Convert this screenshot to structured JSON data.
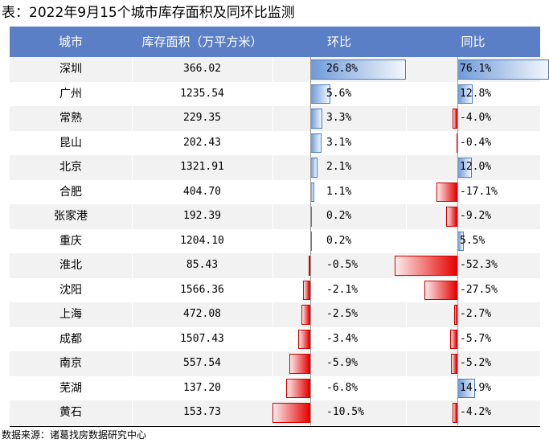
{
  "title": "表：2022年9月15个城市库存面积及同环比监测",
  "source": "数据来源：诸葛找房数据研究中心",
  "headers": {
    "city": "城市",
    "inventory": "库存面积（万平方米）",
    "mom": "环比",
    "yoy": "同比"
  },
  "colors": {
    "header_bg": "#5b7fc6",
    "positive_bar": "#6f9bd8",
    "negative_bar": "#e60000"
  },
  "chart_data": {
    "type": "table",
    "columns": [
      "城市",
      "库存面积（万平方米）",
      "环比",
      "同比"
    ],
    "rows": [
      {
        "city": "深圳",
        "inventory": "366.02",
        "mom": 26.8,
        "mom_label": "26.8%",
        "yoy": 76.1,
        "yoy_label": "76.1%"
      },
      {
        "city": "广州",
        "inventory": "1235.54",
        "mom": 5.6,
        "mom_label": "5.6%",
        "yoy": 12.8,
        "yoy_label": "12.8%"
      },
      {
        "city": "常熟",
        "inventory": "229.35",
        "mom": 3.3,
        "mom_label": "3.3%",
        "yoy": -4.0,
        "yoy_label": "-4.0%"
      },
      {
        "city": "昆山",
        "inventory": "202.43",
        "mom": 3.1,
        "mom_label": "3.1%",
        "yoy": -0.4,
        "yoy_label": "-0.4%"
      },
      {
        "city": "北京",
        "inventory": "1321.91",
        "mom": 2.1,
        "mom_label": "2.1%",
        "yoy": 12.0,
        "yoy_label": "12.0%"
      },
      {
        "city": "合肥",
        "inventory": "404.70",
        "mom": 1.1,
        "mom_label": "1.1%",
        "yoy": -17.1,
        "yoy_label": "-17.1%"
      },
      {
        "city": "张家港",
        "inventory": "192.39",
        "mom": 0.2,
        "mom_label": "0.2%",
        "yoy": -9.2,
        "yoy_label": "-9.2%"
      },
      {
        "city": "重庆",
        "inventory": "1204.10",
        "mom": 0.2,
        "mom_label": "0.2%",
        "yoy": 5.5,
        "yoy_label": "5.5%"
      },
      {
        "city": "淮北",
        "inventory": "85.43",
        "mom": -0.5,
        "mom_label": "-0.5%",
        "yoy": -52.3,
        "yoy_label": "-52.3%"
      },
      {
        "city": "沈阳",
        "inventory": "1566.36",
        "mom": -2.1,
        "mom_label": "-2.1%",
        "yoy": -27.5,
        "yoy_label": "-27.5%"
      },
      {
        "city": "上海",
        "inventory": "472.08",
        "mom": -2.5,
        "mom_label": "-2.5%",
        "yoy": -2.7,
        "yoy_label": "-2.7%"
      },
      {
        "city": "成都",
        "inventory": "1507.43",
        "mom": -3.4,
        "mom_label": "-3.4%",
        "yoy": -5.7,
        "yoy_label": "-5.7%"
      },
      {
        "city": "南京",
        "inventory": "557.54",
        "mom": -5.9,
        "mom_label": "-5.9%",
        "yoy": -5.2,
        "yoy_label": "-5.2%"
      },
      {
        "city": "芜湖",
        "inventory": "137.20",
        "mom": -6.8,
        "mom_label": "-6.8%",
        "yoy": 14.9,
        "yoy_label": "14.9%"
      },
      {
        "city": "黄石",
        "inventory": "153.73",
        "mom": -10.5,
        "mom_label": "-10.5%",
        "yoy": -4.2,
        "yoy_label": "-4.2%"
      }
    ]
  }
}
